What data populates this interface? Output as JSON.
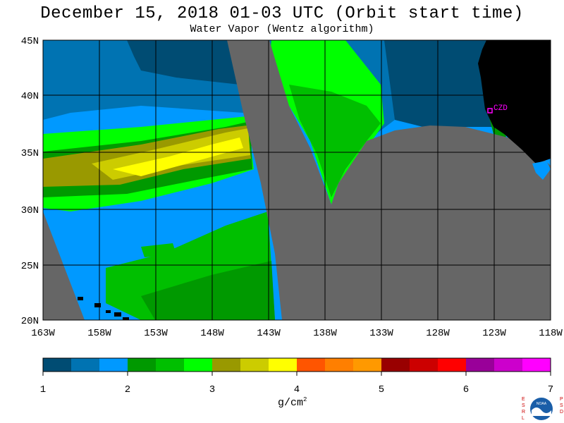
{
  "header": {
    "title": "December 15, 2018  01-03 UTC  (Orbit start time)",
    "subtitle": "Water Vapor (Wentz algorithm)"
  },
  "map": {
    "lat_labels": [
      "45N",
      "40N",
      "35N",
      "30N",
      "25N",
      "20N"
    ],
    "lon_labels": [
      "163W",
      "158W",
      "153W",
      "148W",
      "143W",
      "138W",
      "133W",
      "128W",
      "123W",
      "118W"
    ],
    "station_label": "CZD",
    "station_color": "#ff00ff"
  },
  "colorbar": {
    "tick_labels": [
      "1",
      "2",
      "3",
      "4",
      "5",
      "6",
      "7"
    ],
    "units_label": "g/cm",
    "units_exponent": "2",
    "colors": [
      "#004c73",
      "#0073b2",
      "#0099ff",
      "#009900",
      "#00bf00",
      "#00ff00",
      "#999900",
      "#cccc00",
      "#ffff00",
      "#ff5500",
      "#ff7f00",
      "#ff9900",
      "#990000",
      "#cc0000",
      "#ff0000",
      "#990099",
      "#cc00cc",
      "#ff00ff"
    ]
  },
  "logo": {
    "left_letters": "ESRL",
    "right_letters": "PSD",
    "center_text": "NOAA"
  }
}
